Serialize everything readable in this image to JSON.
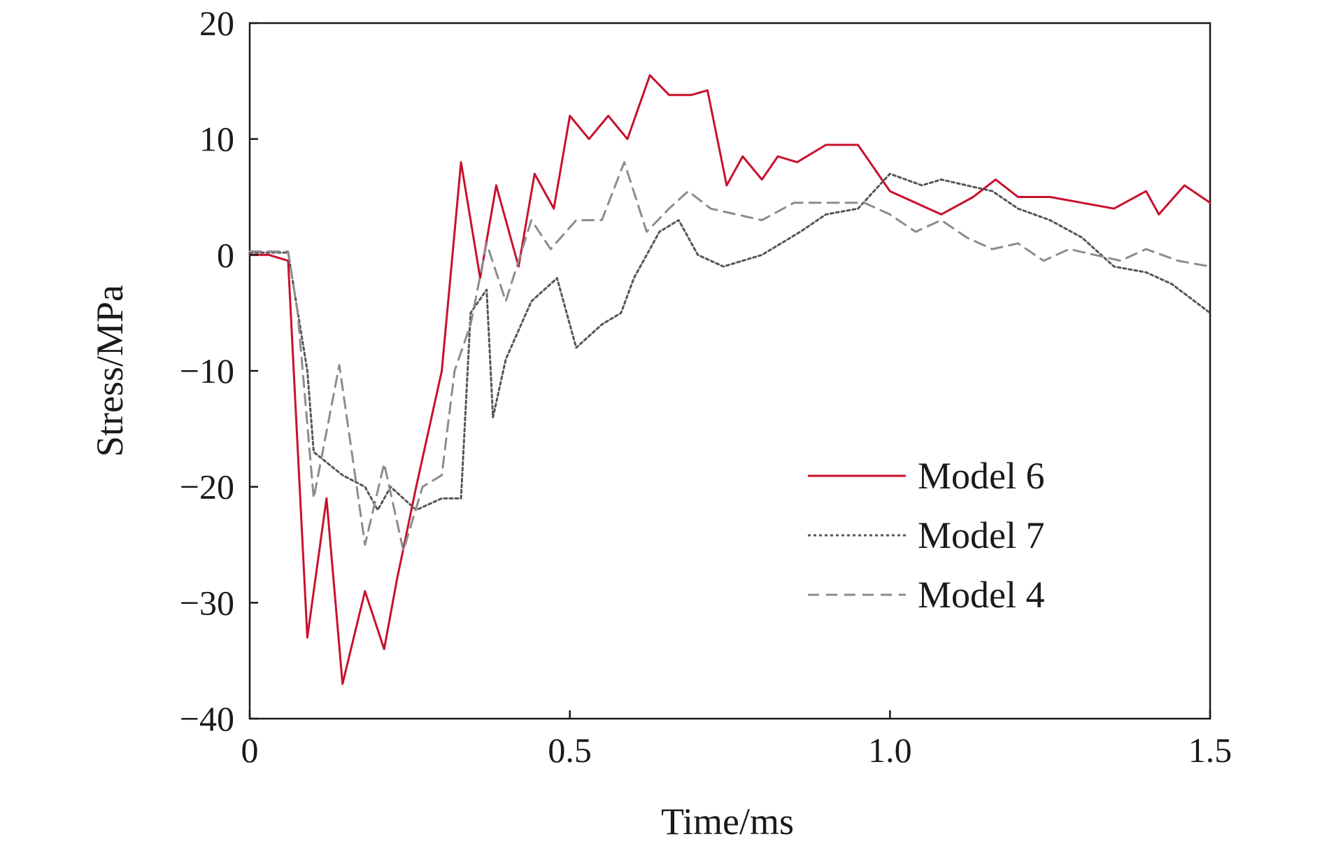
{
  "chart_data": {
    "type": "line",
    "xlabel": "Time/ms",
    "ylabel": "Stress/MPa",
    "xlim": [
      0,
      1.5
    ],
    "ylim": [
      -40,
      20
    ],
    "x_ticks": [
      0,
      0.5,
      1.0,
      1.5
    ],
    "x_tick_labels": [
      "0",
      "0.5",
      "1.0",
      "1.5"
    ],
    "y_ticks": [
      20,
      10,
      0,
      -10,
      -20,
      -30,
      -40
    ],
    "y_tick_labels": [
      "20",
      "10",
      "0",
      "−10",
      "−20",
      "−30",
      "−40"
    ],
    "grid": false,
    "legend_position": "lower-right",
    "series": [
      {
        "name": "Model 6",
        "color": "#c8102e",
        "dash": "solid",
        "points": [
          [
            0,
            0
          ],
          [
            0.03,
            0
          ],
          [
            0.06,
            -0.5
          ],
          [
            0.09,
            -33
          ],
          [
            0.12,
            -21
          ],
          [
            0.145,
            -37
          ],
          [
            0.18,
            -29
          ],
          [
            0.21,
            -34
          ],
          [
            0.23,
            -28
          ],
          [
            0.23,
            -28
          ],
          [
            0.26,
            -20
          ],
          [
            0.3,
            -10
          ],
          [
            0.33,
            8
          ],
          [
            0.36,
            -2
          ],
          [
            0.385,
            6
          ],
          [
            0.42,
            -1
          ],
          [
            0.445,
            7
          ],
          [
            0.475,
            4
          ],
          [
            0.5,
            12
          ],
          [
            0.53,
            10
          ],
          [
            0.56,
            12
          ],
          [
            0.59,
            10
          ],
          [
            0.625,
            15.5
          ],
          [
            0.655,
            13.8
          ],
          [
            0.69,
            13.8
          ],
          [
            0.715,
            14.2
          ],
          [
            0.745,
            6
          ],
          [
            0.77,
            8.5
          ],
          [
            0.8,
            6.5
          ],
          [
            0.825,
            8.5
          ],
          [
            0.855,
            8
          ],
          [
            0.9,
            9.5
          ],
          [
            0.95,
            9.5
          ],
          [
            1.0,
            5.5
          ],
          [
            1.04,
            4.5
          ],
          [
            1.08,
            3.5
          ],
          [
            1.13,
            5
          ],
          [
            1.165,
            6.5
          ],
          [
            1.2,
            5
          ],
          [
            1.25,
            5
          ],
          [
            1.3,
            4.5
          ],
          [
            1.35,
            4
          ],
          [
            1.4,
            5.5
          ],
          [
            1.42,
            3.5
          ],
          [
            1.46,
            6
          ],
          [
            1.5,
            4.5
          ]
        ]
      },
      {
        "name": "Model 7",
        "color": "#555555",
        "dash": "dotted",
        "points": [
          [
            0,
            0.2
          ],
          [
            0.06,
            0.2
          ],
          [
            0.09,
            -10
          ],
          [
            0.1,
            -17
          ],
          [
            0.145,
            -19
          ],
          [
            0.18,
            -20
          ],
          [
            0.2,
            -22
          ],
          [
            0.22,
            -20
          ],
          [
            0.26,
            -22
          ],
          [
            0.3,
            -21
          ],
          [
            0.33,
            -21
          ],
          [
            0.345,
            -5
          ],
          [
            0.37,
            -3
          ],
          [
            0.38,
            -14
          ],
          [
            0.4,
            -9
          ],
          [
            0.44,
            -4
          ],
          [
            0.48,
            -2
          ],
          [
            0.51,
            -8
          ],
          [
            0.55,
            -6
          ],
          [
            0.58,
            -5
          ],
          [
            0.6,
            -2
          ],
          [
            0.64,
            2
          ],
          [
            0.67,
            3
          ],
          [
            0.7,
            0
          ],
          [
            0.74,
            -1
          ],
          [
            0.8,
            0
          ],
          [
            0.86,
            2
          ],
          [
            0.9,
            3.5
          ],
          [
            0.95,
            4
          ],
          [
            1.0,
            7
          ],
          [
            1.05,
            6
          ],
          [
            1.08,
            6.5
          ],
          [
            1.12,
            6
          ],
          [
            1.16,
            5.5
          ],
          [
            1.2,
            4
          ],
          [
            1.25,
            3
          ],
          [
            1.3,
            1.5
          ],
          [
            1.35,
            -1
          ],
          [
            1.4,
            -1.5
          ],
          [
            1.44,
            -2.5
          ],
          [
            1.5,
            -5
          ]
        ]
      },
      {
        "name": "Model 4",
        "color": "#8c8c8c",
        "dash": "dashed",
        "points": [
          [
            0,
            0.3
          ],
          [
            0.06,
            0.3
          ],
          [
            0.075,
            -5
          ],
          [
            0.1,
            -21
          ],
          [
            0.14,
            -9.5
          ],
          [
            0.18,
            -25
          ],
          [
            0.21,
            -18
          ],
          [
            0.24,
            -25.5
          ],
          [
            0.27,
            -20
          ],
          [
            0.3,
            -19
          ],
          [
            0.32,
            -10
          ],
          [
            0.345,
            -6
          ],
          [
            0.37,
            1
          ],
          [
            0.4,
            -4
          ],
          [
            0.44,
            3
          ],
          [
            0.47,
            0.5
          ],
          [
            0.51,
            3
          ],
          [
            0.55,
            3
          ],
          [
            0.585,
            8
          ],
          [
            0.62,
            2
          ],
          [
            0.655,
            4
          ],
          [
            0.685,
            5.5
          ],
          [
            0.72,
            4
          ],
          [
            0.76,
            3.5
          ],
          [
            0.8,
            3
          ],
          [
            0.85,
            4.5
          ],
          [
            0.9,
            4.5
          ],
          [
            0.96,
            4.5
          ],
          [
            1.0,
            3.5
          ],
          [
            1.04,
            2
          ],
          [
            1.08,
            3
          ],
          [
            1.12,
            1.5
          ],
          [
            1.16,
            0.5
          ],
          [
            1.2,
            1
          ],
          [
            1.24,
            -0.5
          ],
          [
            1.28,
            0.5
          ],
          [
            1.32,
            0
          ],
          [
            1.36,
            -0.5
          ],
          [
            1.4,
            0.5
          ],
          [
            1.45,
            -0.5
          ],
          [
            1.5,
            -1
          ]
        ]
      }
    ]
  }
}
